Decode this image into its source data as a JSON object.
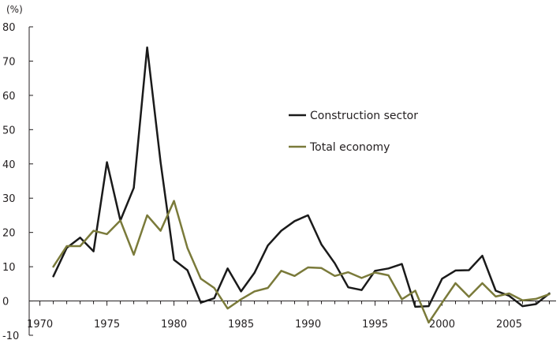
{
  "chart_data": {
    "type": "line",
    "title": "",
    "xlabel": "",
    "ylabel": "",
    "unit_label": "(%)",
    "xlim": [
      1969.2,
      2008.5
    ],
    "ylim": [
      -10,
      80
    ],
    "x_ticks": [
      1970,
      1975,
      1980,
      1985,
      1990,
      1995,
      2000,
      2005
    ],
    "y_ticks": [
      -10,
      0,
      10,
      20,
      30,
      40,
      50,
      60,
      70,
      80
    ],
    "grid": false,
    "legend_position": "center-right",
    "x": [
      1971,
      1972,
      1973,
      1974,
      1975,
      1976,
      1977,
      1978,
      1979,
      1980,
      1981,
      1982,
      1983,
      1984,
      1985,
      1986,
      1987,
      1988,
      1989,
      1990,
      1991,
      1992,
      1993,
      1994,
      1995,
      1996,
      1997,
      1998,
      1999,
      2000,
      2001,
      2002,
      2003,
      2004,
      2005,
      2006,
      2007,
      2008
    ],
    "series": [
      {
        "name": "Construction sector",
        "color": "#1a1a1a",
        "values": [
          7.2,
          15.5,
          18.5,
          14.5,
          40.5,
          23.5,
          33,
          74,
          40.5,
          12,
          9,
          -0.5,
          0.8,
          9.5,
          2.8,
          8.2,
          16.2,
          20.5,
          23.3,
          25,
          16.5,
          11,
          4,
          3.2,
          8.8,
          9.5,
          10.8,
          -1.7,
          -1.5,
          6.5,
          8.9,
          9,
          13.2,
          3,
          1.5,
          -1.5,
          -0.9,
          2.2
        ],
        "label": ""
      },
      {
        "name": "Total economy",
        "color": "#7a7a3a",
        "values": [
          10,
          16,
          16,
          20.5,
          19.5,
          23.5,
          13.5,
          25,
          20.5,
          29.2,
          15.5,
          6.5,
          3.8,
          -2.2,
          0.5,
          2.8,
          3.8,
          8.8,
          7.3,
          9.8,
          9.6,
          7.3,
          8.4,
          6.7,
          8.3,
          7.5,
          0.5,
          3,
          -6.3,
          -0.5,
          5.2,
          1.2,
          5.2,
          1.3,
          2.2,
          0.2,
          0.6,
          2
        ]
      }
    ]
  }
}
